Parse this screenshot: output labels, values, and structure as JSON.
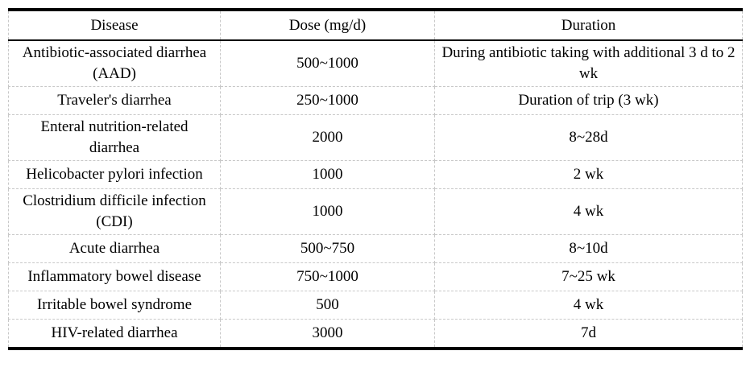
{
  "table": {
    "columns": [
      "Disease",
      "Dose (mg/d)",
      "Duration"
    ],
    "rows": [
      {
        "disease": "Antibiotic-associated diarrhea (AAD)",
        "dose": "500~1000",
        "duration": "During antibiotic taking with additional 3 d to 2 wk"
      },
      {
        "disease": "Traveler's diarrhea",
        "dose": "250~1000",
        "duration": "Duration of trip (3 wk)"
      },
      {
        "disease": "Enteral nutrition-related diarrhea",
        "dose": "2000",
        "duration": "8~28d"
      },
      {
        "disease": "Helicobacter pylori infection",
        "dose": "1000",
        "duration": "2 wk"
      },
      {
        "disease": "Clostridium difficile infection (CDI)",
        "dose": "1000",
        "duration": "4 wk"
      },
      {
        "disease": "Acute diarrhea",
        "dose": "500~750",
        "duration": "8~10d"
      },
      {
        "disease": "Inflammatory bowel disease",
        "dose": "750~1000",
        "duration": "7~25 wk"
      },
      {
        "disease": "Irritable bowel syndrome",
        "dose": "500",
        "duration": "4 wk"
      },
      {
        "disease": "HIV-related diarrhea",
        "dose": "3000",
        "duration": "7d"
      }
    ],
    "colors": {
      "text": "#000000",
      "rule_heavy": "#000000",
      "grid_dashed": "#c8c8c8",
      "background": "#ffffff"
    }
  }
}
